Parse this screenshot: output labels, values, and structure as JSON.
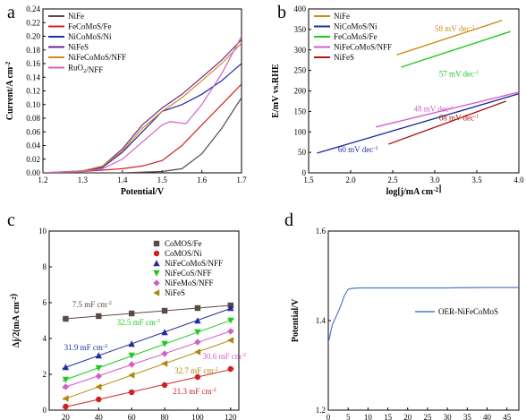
{
  "chart_data": [
    {
      "id": "a",
      "type": "line",
      "panel_label": "a",
      "xlabel": "Potential/V",
      "ylabel": "Current/A cm-2",
      "xlim": [
        1.2,
        1.7
      ],
      "ylim": [
        0,
        0.24
      ],
      "xticks": [
        1.2,
        1.3,
        1.4,
        1.5,
        1.6,
        1.7
      ],
      "yticks": [
        0.0,
        0.02,
        0.04,
        0.06,
        0.08,
        0.1,
        0.12,
        0.14,
        0.16,
        0.18,
        0.2,
        0.22,
        0.24
      ],
      "xtick_labels": [
        "1.2",
        "1.3",
        "1.4",
        "1.5",
        "1.6",
        "1.7"
      ],
      "ytick_labels": [
        "0.00",
        "0.02",
        "0.04",
        "0.06",
        "0.08",
        "0.10",
        "0.12",
        "0.14",
        "0.16",
        "0.18",
        "0.20",
        "0.22",
        "0.24"
      ],
      "legend_position": "top-left",
      "series": [
        {
          "name": "NiFe",
          "color": "#5a4a46",
          "x": [
            1.2,
            1.3,
            1.4,
            1.5,
            1.55,
            1.6,
            1.65,
            1.7
          ],
          "y": [
            0.0,
            0.0,
            0.0,
            0.002,
            0.006,
            0.028,
            0.065,
            0.11
          ]
        },
        {
          "name": "FeCoMoS/Fe",
          "color": "#d02020",
          "x": [
            1.2,
            1.3,
            1.4,
            1.45,
            1.5,
            1.55,
            1.6,
            1.65,
            1.7
          ],
          "y": [
            0.0,
            0.002,
            0.006,
            0.01,
            0.018,
            0.04,
            0.07,
            0.1,
            0.13
          ]
        },
        {
          "name": "NiCoMoS/Ni",
          "color": "#1f2e9c",
          "x": [
            1.2,
            1.3,
            1.35,
            1.4,
            1.45,
            1.5,
            1.55,
            1.6,
            1.65,
            1.7
          ],
          "y": [
            0.0,
            0.002,
            0.008,
            0.03,
            0.06,
            0.09,
            0.1,
            0.115,
            0.135,
            0.16
          ]
        },
        {
          "name": "NiFeS",
          "color": "#6a2a8a",
          "x": [
            1.2,
            1.3,
            1.35,
            1.4,
            1.45,
            1.5,
            1.55,
            1.6,
            1.65,
            1.7
          ],
          "y": [
            0.0,
            0.003,
            0.01,
            0.035,
            0.07,
            0.095,
            0.115,
            0.14,
            0.165,
            0.195
          ]
        },
        {
          "name": "NiFeCoMoS/NFF",
          "color": "#d48a1a",
          "x": [
            1.2,
            1.3,
            1.35,
            1.4,
            1.45,
            1.5,
            1.55,
            1.6,
            1.65,
            1.7
          ],
          "y": [
            0.0,
            0.003,
            0.01,
            0.032,
            0.065,
            0.09,
            0.11,
            0.135,
            0.16,
            0.19
          ]
        },
        {
          "name": "RuO2/NFF",
          "color": "#d060c8",
          "x": [
            1.2,
            1.3,
            1.35,
            1.4,
            1.45,
            1.5,
            1.52,
            1.56,
            1.6,
            1.65,
            1.7
          ],
          "y": [
            0.0,
            0.002,
            0.006,
            0.02,
            0.045,
            0.07,
            0.075,
            0.072,
            0.1,
            0.145,
            0.2
          ]
        }
      ]
    },
    {
      "id": "b",
      "type": "line",
      "panel_label": "b",
      "xlabel": "log[j/mA cm-2]",
      "ylabel": "E/mV vs.RHE",
      "xlim": [
        1.5,
        4.0
      ],
      "ylim": [
        0,
        400
      ],
      "xticks": [
        1.5,
        2.0,
        2.5,
        3.0,
        3.5,
        4.0
      ],
      "yticks": [
        0,
        50,
        100,
        150,
        200,
        250,
        300,
        350,
        400
      ],
      "xtick_labels": [
        "1.5",
        "2.0",
        "2.5",
        "3.0",
        "3.5",
        "4.0"
      ],
      "ytick_labels": [
        "0",
        "50",
        "100",
        "150",
        "200",
        "250",
        "300",
        "350",
        "400"
      ],
      "legend_position": "top-left",
      "series": [
        {
          "name": "NiFe",
          "color": "#d48a1a",
          "x": [
            2.55,
            3.8
          ],
          "y": [
            288,
            372
          ]
        },
        {
          "name": "NiCoMoS/Ni",
          "color": "#1f2e9c",
          "x": [
            1.6,
            4.0
          ],
          "y": [
            48,
            193
          ]
        },
        {
          "name": "FeCoMoS/Fe",
          "color": "#22c822",
          "x": [
            2.6,
            3.9
          ],
          "y": [
            258,
            345
          ]
        },
        {
          "name": "NiFeCoMoS/NFF",
          "color": "#d060c8",
          "x": [
            2.3,
            4.0
          ],
          "y": [
            112,
            197
          ]
        },
        {
          "name": "NiFeS",
          "color": "#b01818",
          "x": [
            2.45,
            3.85
          ],
          "y": [
            70,
            175
          ]
        }
      ],
      "annotations": [
        {
          "text": "58 mV dec-1",
          "x": 3.0,
          "y": 345,
          "color": "#d48a1a"
        },
        {
          "text": "57 mV dec-1",
          "x": 3.05,
          "y": 235,
          "color": "#22c822"
        },
        {
          "text": "48 mV dec-1",
          "x": 2.75,
          "y": 150,
          "color": "#d060c8"
        },
        {
          "text": "68 mV dec-1",
          "x": 3.05,
          "y": 128,
          "color": "#b01818"
        },
        {
          "text": "60 mV dec-1",
          "x": 1.85,
          "y": 50,
          "color": "#1f2e9c"
        }
      ]
    },
    {
      "id": "c",
      "type": "scatter",
      "panel_label": "c",
      "xlabel": "Scan rate(mV s-1)",
      "ylabel": "Δj/2(mA cm-2)",
      "xlim": [
        10,
        125
      ],
      "ylim": [
        0,
        10
      ],
      "xticks": [
        20,
        40,
        60,
        80,
        100,
        120
      ],
      "yticks": [
        0,
        2,
        4,
        6,
        8,
        10
      ],
      "xtick_labels": [
        "20",
        "40",
        "60",
        "80",
        "100",
        "120"
      ],
      "ytick_labels": [
        "0",
        "2",
        "4",
        "6",
        "8",
        "10"
      ],
      "legend_position": "top-right",
      "x": [
        20,
        40,
        60,
        80,
        100,
        120
      ],
      "series": [
        {
          "name": "CoMOS/Fe",
          "color": "#5a4a46",
          "marker": "square",
          "y": [
            5.1,
            5.25,
            5.4,
            5.55,
            5.7,
            5.85
          ]
        },
        {
          "name": "CoMOS/Ni",
          "color": "#d02020",
          "marker": "circle",
          "y": [
            0.2,
            0.6,
            1.0,
            1.4,
            1.85,
            2.3
          ]
        },
        {
          "name": "NiFeCoMoS/NFF",
          "color": "#1f2e9c",
          "marker": "triangle-up",
          "y": [
            2.4,
            3.05,
            3.7,
            4.35,
            5.0,
            5.7
          ]
        },
        {
          "name": "NiFeCoS/NFF",
          "color": "#22c822",
          "marker": "triangle-down",
          "y": [
            1.7,
            2.35,
            3.05,
            3.7,
            4.35,
            5.0
          ]
        },
        {
          "name": "NiFeMoS/NFF",
          "color": "#d060c8",
          "marker": "diamond",
          "y": [
            1.3,
            1.9,
            2.55,
            3.15,
            3.8,
            4.4
          ]
        },
        {
          "name": "NiFeS",
          "color": "#b0860a",
          "marker": "triangle-left",
          "y": [
            0.65,
            1.3,
            1.95,
            2.6,
            3.25,
            3.9
          ]
        }
      ],
      "annotations": [
        {
          "text": "7.5 mF cm-2",
          "x": 24,
          "y": 5.75,
          "color": "#5a4a46"
        },
        {
          "text": "32.5 mF cm-2",
          "x": 51,
          "y": 4.75,
          "color": "#22c822"
        },
        {
          "text": "31.9 mF cm-2",
          "x": 19,
          "y": 3.35,
          "color": "#1f2e9c"
        },
        {
          "text": "30.6 mF cm-2",
          "x": 103,
          "y": 2.85,
          "color": "#d060c8"
        },
        {
          "text": "32.7 mF cm-2",
          "x": 86,
          "y": 2.05,
          "color": "#b0860a"
        },
        {
          "text": "21.3 mF cm-2",
          "x": 85,
          "y": 0.9,
          "color": "#d02020"
        }
      ]
    },
    {
      "id": "d",
      "type": "line",
      "panel_label": "d",
      "xlabel": "Time(h)",
      "ylabel": "Potential/V",
      "xlim": [
        0,
        48
      ],
      "ylim": [
        1.2,
        1.6
      ],
      "xticks": [
        0,
        5,
        10,
        15,
        20,
        25,
        30,
        35,
        40,
        45
      ],
      "yticks": [
        1.2,
        1.4,
        1.6
      ],
      "xtick_labels": [
        "0",
        "5",
        "10",
        "15",
        "20",
        "25",
        "30",
        "35",
        "40",
        "45"
      ],
      "ytick_labels": [
        "1.2",
        "1.4",
        "1.6"
      ],
      "legend_position": "right",
      "series": [
        {
          "name": "OER-NiFeCoMoS",
          "color": "#4a7cc8",
          "x": [
            0,
            0.5,
            1,
            2,
            3,
            4,
            5,
            6,
            8,
            10,
            20,
            30,
            40,
            48
          ],
          "y": [
            1.35,
            1.37,
            1.39,
            1.41,
            1.43,
            1.455,
            1.47,
            1.472,
            1.473,
            1.473,
            1.473,
            1.473,
            1.474,
            1.474
          ]
        }
      ]
    }
  ]
}
